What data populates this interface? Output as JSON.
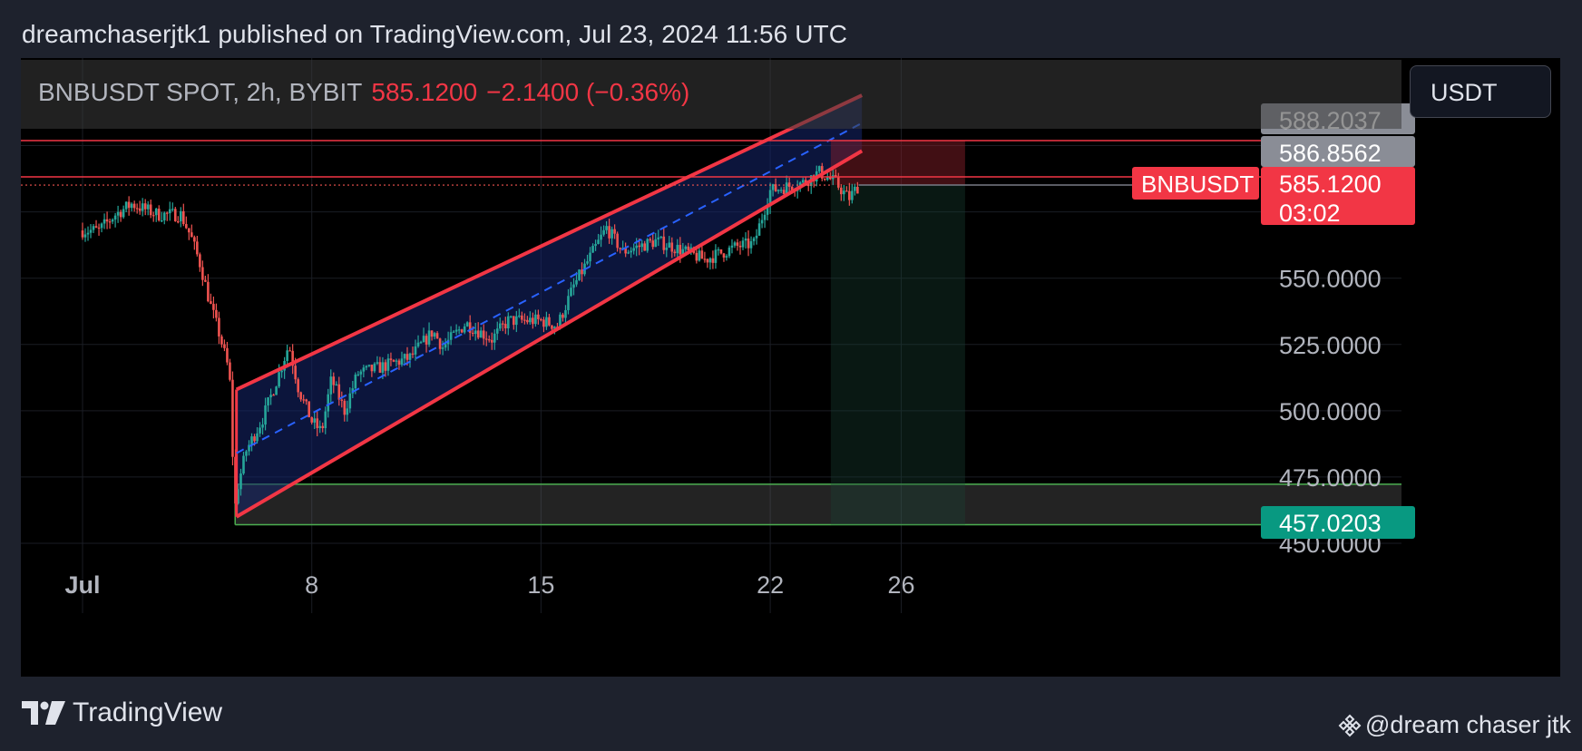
{
  "header": {
    "text": "dreamchaserjtk1 published on TradingView.com, Jul 23, 2024 11:56 UTC"
  },
  "symbol": {
    "name": "BNBUSDT SPOT, 2h, BYBIT",
    "price": "585.1200",
    "change": "−2.1400 (−0.36%)",
    "currency": "USDT"
  },
  "colors": {
    "background": "#000000",
    "up": "#26a69a",
    "down": "#ef5350",
    "channel": "#f23645",
    "channel_fill": "#0d1a4a",
    "midline": "#2962ff",
    "green_zone": "#4caf50"
  },
  "price_labels": {
    "top1": "588.2037",
    "top2": "586.8562",
    "current": "585.1200",
    "countdown": "03:02",
    "ticker_tag": "BNBUSDT",
    "target": "457.0203"
  },
  "chart_data": {
    "type": "candlestick",
    "title": "BNBUSDT SPOT, 2h, BYBIT",
    "y_ticks": [
      "450.0000",
      "475.0000",
      "500.0000",
      "525.0000",
      "550.0000"
    ],
    "x_ticks": [
      "Jul",
      "8",
      "15",
      "22",
      "26"
    ],
    "ylim": [
      450,
      600
    ],
    "close_path": [
      [
        0,
        568
      ],
      [
        0.5,
        568
      ],
      [
        1,
        574
      ],
      [
        1.5,
        578
      ],
      [
        2.3,
        574
      ],
      [
        3.0,
        574
      ],
      [
        3.3,
        566
      ],
      [
        3.6,
        555
      ],
      [
        3.9,
        540
      ],
      [
        4.2,
        528
      ],
      [
        4.45,
        516
      ],
      [
        4.55,
        505
      ],
      [
        4.62,
        460
      ],
      [
        4.75,
        472
      ],
      [
        5.0,
        485
      ],
      [
        5.5,
        497
      ],
      [
        6.0,
        514
      ],
      [
        6.3,
        525
      ],
      [
        6.6,
        508
      ],
      [
        7.0,
        496
      ],
      [
        7.3,
        492
      ],
      [
        7.6,
        512
      ],
      [
        8.0,
        500
      ],
      [
        8.4,
        514
      ],
      [
        9.0,
        516
      ],
      [
        10.0,
        520
      ],
      [
        10.7,
        530
      ],
      [
        11.0,
        524
      ],
      [
        11.7,
        533
      ],
      [
        12.5,
        527
      ],
      [
        13.0,
        534
      ],
      [
        14.0,
        534
      ],
      [
        14.5,
        532
      ],
      [
        15.0,
        547
      ],
      [
        16.0,
        569
      ],
      [
        16.5,
        560
      ],
      [
        17.5,
        564
      ],
      [
        18.0,
        562
      ],
      [
        19.0,
        557
      ],
      [
        20.0,
        562
      ],
      [
        20.5,
        563
      ],
      [
        21.0,
        583
      ],
      [
        22.0,
        586
      ],
      [
        22.5,
        590
      ],
      [
        23.0,
        586
      ],
      [
        23.4,
        580
      ],
      [
        23.7,
        585
      ]
    ],
    "annotations": {
      "channel_upper": [
        [
          4.7,
          508
        ],
        [
          23.8,
          619
        ]
      ],
      "channel_lower": [
        [
          4.7,
          460
        ],
        [
          23.8,
          598
        ]
      ],
      "channel_mid": [
        [
          4.7,
          484
        ],
        [
          23.8,
          608.5
        ]
      ],
      "green_zone": [
        457.0203,
        472.3
      ],
      "red_box_top": 588.2037,
      "short_entry": 585.12,
      "short_target": 457.0203,
      "horizontal_lines": [
        588.2037,
        575.5
      ]
    }
  },
  "footer": {
    "brand": "TradingView",
    "credit": "@dream chaser jtk"
  }
}
